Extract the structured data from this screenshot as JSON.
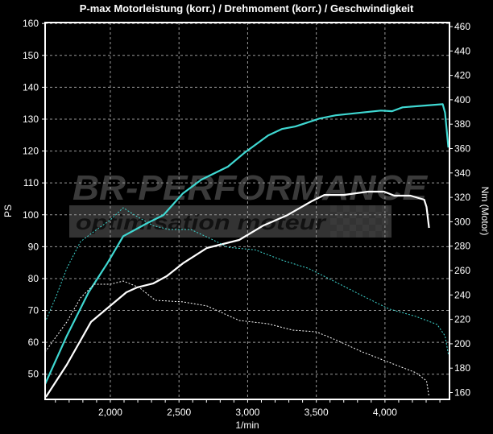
{
  "chart_data": {
    "type": "line",
    "title": "P-max Motorleistung (korr.) / Drehmoment (korr.) / Geschwindigkeit",
    "xlabel": "1/min",
    "ylabel_left": "PS",
    "ylabel_right": "Nm (Motor)",
    "xlim": [
      1525,
      4470
    ],
    "ylim_left": [
      42.1,
      160.3
    ],
    "ylim_right": [
      154.4,
      463.3
    ],
    "x_ticks": [
      2000,
      2500,
      3000,
      3500,
      4000
    ],
    "x_tick_labels": [
      "2,000",
      "2,500",
      "3,000",
      "3,500",
      "4,000"
    ],
    "y_left_ticks": [
      50,
      60,
      70,
      80,
      90,
      100,
      110,
      120,
      130,
      140,
      150,
      160
    ],
    "y_right_ticks": [
      160,
      180,
      200,
      220,
      240,
      260,
      280,
      300,
      320,
      340,
      360,
      380,
      400,
      420,
      440,
      460
    ],
    "grid": true,
    "background": "#000000",
    "watermark": {
      "line1": "BR-PERFORMANCE",
      "line2": "optimisation moteur"
    },
    "series": [
      {
        "axis": "left",
        "color": "#3fd8d2",
        "style": "solid",
        "x": [
          1525,
          1683,
          1842,
          1977,
          2094,
          2270,
          2387,
          2528,
          2662,
          2856,
          2973,
          3149,
          3249,
          3348,
          3524,
          3641,
          3970,
          4052,
          4128,
          4421,
          4438,
          4462
        ],
        "y": [
          46.9,
          62.0,
          75.7,
          84.7,
          93.3,
          97.4,
          99.9,
          106.7,
          111.0,
          115.1,
          119.3,
          124.9,
          126.9,
          127.7,
          130.2,
          131.2,
          132.7,
          132.5,
          133.7,
          134.7,
          132.0,
          121.1
        ]
      },
      {
        "axis": "right",
        "color": "#ffffff",
        "style": "solid",
        "x": [
          1531,
          1683,
          1859,
          1977,
          2117,
          2193,
          2311,
          2410,
          2528,
          2703,
          2938,
          3114,
          3290,
          3465,
          3559,
          3700,
          3876,
          3993,
          4069,
          4186,
          4286,
          4303,
          4321
        ],
        "y": [
          156.4,
          182.8,
          217.8,
          229.0,
          242.2,
          246.1,
          249.4,
          255.4,
          265.9,
          278.5,
          285.1,
          296.9,
          305.5,
          316.8,
          322.0,
          322.0,
          324.7,
          324.7,
          321.4,
          321.4,
          318.1,
          312.1,
          295.0
        ]
      },
      {
        "axis": "left",
        "color": "#3fd8d2",
        "style": "dashed",
        "x": [
          1525,
          1607,
          1683,
          1783,
          1883,
          2000,
          2094,
          2176,
          2311,
          2428,
          2586,
          2739,
          2856,
          3055,
          3249,
          3442,
          3641,
          3835,
          4028,
          4227,
          4380,
          4438,
          4462
        ],
        "y": [
          66.3,
          74.6,
          83.2,
          91.6,
          94.8,
          98.4,
          102.2,
          99.9,
          96.6,
          95.4,
          95.4,
          92.3,
          89.8,
          89.0,
          85.8,
          83.2,
          78.9,
          74.6,
          70.5,
          68.1,
          65.6,
          62.0,
          56.2
        ]
      },
      {
        "axis": "right",
        "color": "#ffffff",
        "style": "dashed",
        "x": [
          1525,
          1683,
          1783,
          1883,
          2000,
          2094,
          2211,
          2328,
          2528,
          2703,
          2938,
          3149,
          3325,
          3500,
          3641,
          3835,
          4028,
          4227,
          4303,
          4321
        ],
        "y": [
          193.3,
          217.8,
          237.6,
          248.8,
          248.8,
          251.4,
          246.1,
          235.6,
          234.3,
          231.0,
          219.1,
          216.4,
          211.2,
          209.8,
          203.2,
          193.3,
          184.8,
          176.2,
          169.6,
          156.4
        ]
      }
    ]
  }
}
